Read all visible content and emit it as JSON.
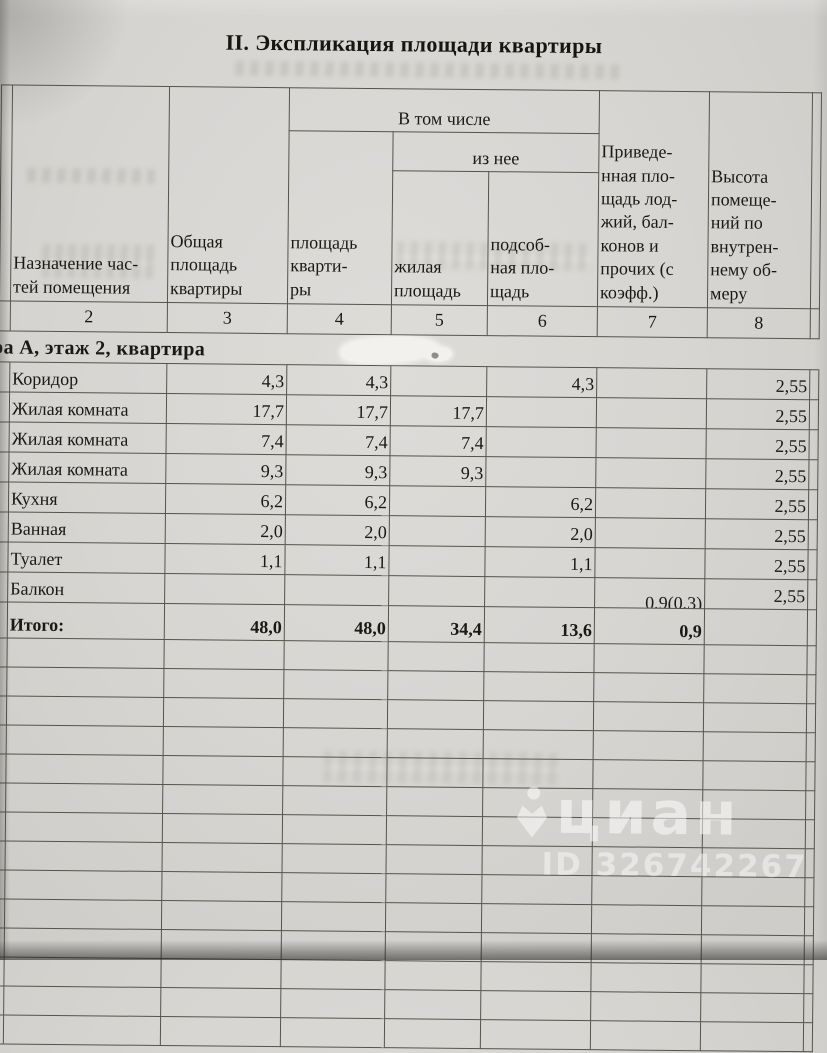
{
  "title": "II. Экспликация площади квартиры",
  "table": {
    "header": {
      "purpose": "Назначение час-\nтей помещения",
      "total": "Общая\nплощадь\nквартиры",
      "including": "В том числе",
      "apartment": "площадь\nкварти-\nры",
      "of_it": "из нее",
      "living": "жилая\nплощадь",
      "auxiliary": "подсоб-\nная пло-\nщадь",
      "reduced": "Приведе-\nнная пло-\nщадь лод-\nжий, бал-\nконов и\nпрочих (с\nкоэфф.)",
      "height": "Высота\nпомеще-\nний по\nвнутрен-\nнему об-\nмеру"
    },
    "column_numbers": [
      "2",
      "3",
      "4",
      "5",
      "6",
      "7",
      "8"
    ],
    "section_row": "ра А, этаж 2, квартира",
    "rows": [
      {
        "label": "Коридор",
        "total": "4,3",
        "apt": "4,3",
        "living": "",
        "aux": "4,3",
        "reduced": "",
        "height": "2,55"
      },
      {
        "label": "Жилая комната",
        "total": "17,7",
        "apt": "17,7",
        "living": "17,7",
        "aux": "",
        "reduced": "",
        "height": "2,55"
      },
      {
        "label": "Жилая комната",
        "total": "7,4",
        "apt": "7,4",
        "living": "7,4",
        "aux": "",
        "reduced": "",
        "height": "2,55"
      },
      {
        "label": "Жилая комната",
        "total": "9,3",
        "apt": "9,3",
        "living": "9,3",
        "aux": "",
        "reduced": "",
        "height": "2,55"
      },
      {
        "label": "Кухня",
        "total": "6,2",
        "apt": "6,2",
        "living": "",
        "aux": "6,2",
        "reduced": "",
        "height": "2,55"
      },
      {
        "label": "Ванная",
        "total": "2,0",
        "apt": "2,0",
        "living": "",
        "aux": "2,0",
        "reduced": "",
        "height": "2,55"
      },
      {
        "label": "Туалет",
        "total": "1,1",
        "apt": "1,1",
        "living": "",
        "aux": "1,1",
        "reduced": "",
        "height": "2,55"
      },
      {
        "label": "Балкон",
        "total": "",
        "apt": "",
        "living": "",
        "aux": "",
        "reduced": "0,9(0,3)",
        "height": "2,55"
      },
      {
        "label": "Итого:",
        "total": "48,0",
        "apt": "48,0",
        "living": "34,4",
        "aux": "13,6",
        "reduced": "0,9",
        "height": "",
        "bold": true
      }
    ]
  },
  "watermark": {
    "logo": "cian-pin-icon",
    "text": "циан",
    "id": "ID 326742267"
  }
}
